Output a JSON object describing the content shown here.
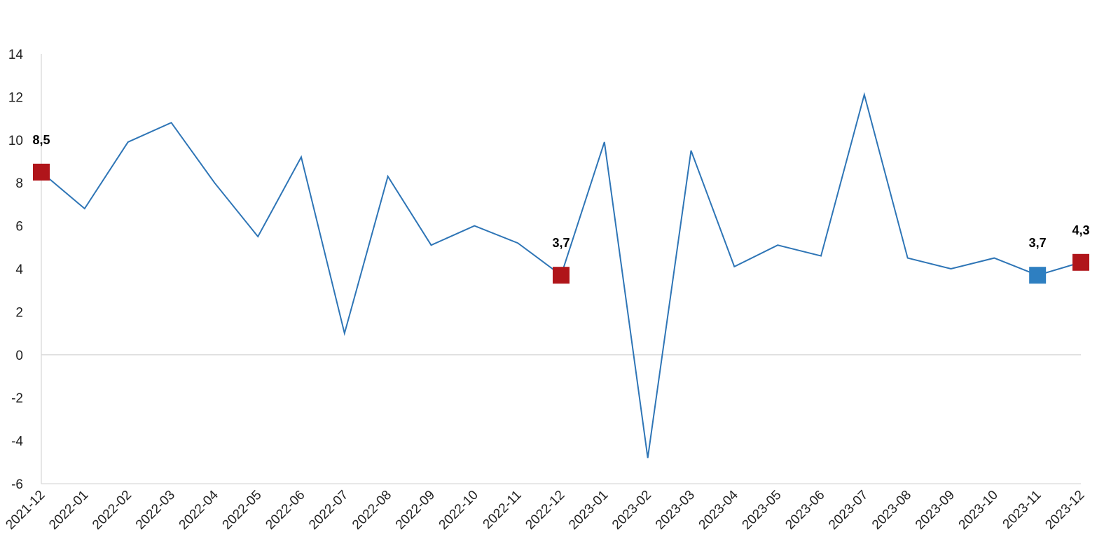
{
  "chart_data": {
    "type": "line",
    "title": "",
    "xlabel": "",
    "ylabel": "",
    "ylim": [
      -6,
      14
    ],
    "yticks": [
      -6,
      -4,
      -2,
      0,
      2,
      4,
      6,
      8,
      10,
      12,
      14
    ],
    "ytick_labels": [
      "-6",
      "-4",
      "-2",
      "0",
      "2",
      "4",
      "6",
      "8",
      "10",
      "12",
      "14"
    ],
    "grid": false,
    "categories": [
      "2021-12",
      "2022-01",
      "2022-02",
      "2022-03",
      "2022-04",
      "2022-05",
      "2022-06",
      "2022-07",
      "2022-08",
      "2022-09",
      "2022-10",
      "2022-11",
      "2022-12",
      "2023-01",
      "2023-02",
      "2023-03",
      "2023-04",
      "2023-05",
      "2023-06",
      "2023-07",
      "2023-08",
      "2023-09",
      "2023-10",
      "2023-11",
      "2023-12"
    ],
    "series": [
      {
        "values": [
          8.5,
          6.8,
          9.9,
          10.8,
          8.0,
          5.5,
          9.2,
          1.0,
          8.3,
          5.1,
          6.0,
          5.2,
          3.7,
          9.9,
          -4.8,
          9.5,
          4.1,
          5.1,
          4.6,
          12.1,
          4.5,
          4.0,
          4.5,
          3.7,
          4.3
        ],
        "color": "#2e75b6"
      }
    ],
    "highlights": [
      {
        "index": 0,
        "label": "8,5",
        "color": "#b0151a"
      },
      {
        "index": 12,
        "label": "3,7",
        "color": "#b0151a"
      },
      {
        "index": 23,
        "label": "3,7",
        "color": "#2e7fc1"
      },
      {
        "index": 24,
        "label": "4,3",
        "color": "#b0151a"
      }
    ],
    "axis_color": "#d9d9d9"
  }
}
